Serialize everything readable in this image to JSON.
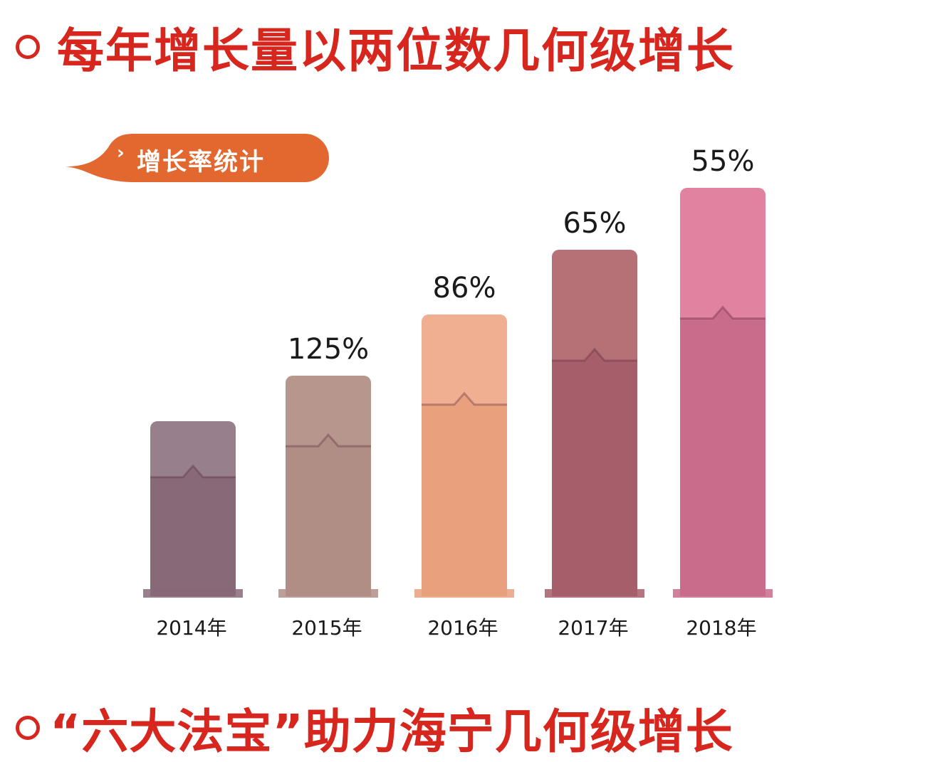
{
  "title_top": "每年增长量以两位数几何级增长",
  "title_bottom": "“六大法宝”助力海宁几何级增长",
  "badge": {
    "chevron": "›",
    "label": "增长率统计"
  },
  "colors": {
    "accent": "#d7261e",
    "badge": "#e2682f",
    "bars": [
      {
        "top": "#977f8b",
        "bottom": "#886978"
      },
      {
        "top": "#b6968d",
        "bottom": "#b08e86"
      },
      {
        "top": "#f0af90",
        "bottom": "#e8a07d"
      },
      {
        "top": "#b57176",
        "bottom": "#a65e6a"
      },
      {
        "top": "#e082a0",
        "bottom": "#c96b8b"
      }
    ]
  },
  "chart_data": {
    "type": "bar",
    "categories": [
      "2014年",
      "2015年",
      "2016年",
      "2017年",
      "2018年"
    ],
    "labels": [
      "",
      "125%",
      "86%",
      "65%",
      "55%"
    ],
    "values": [
      null,
      125,
      86,
      65,
      55
    ]
  }
}
